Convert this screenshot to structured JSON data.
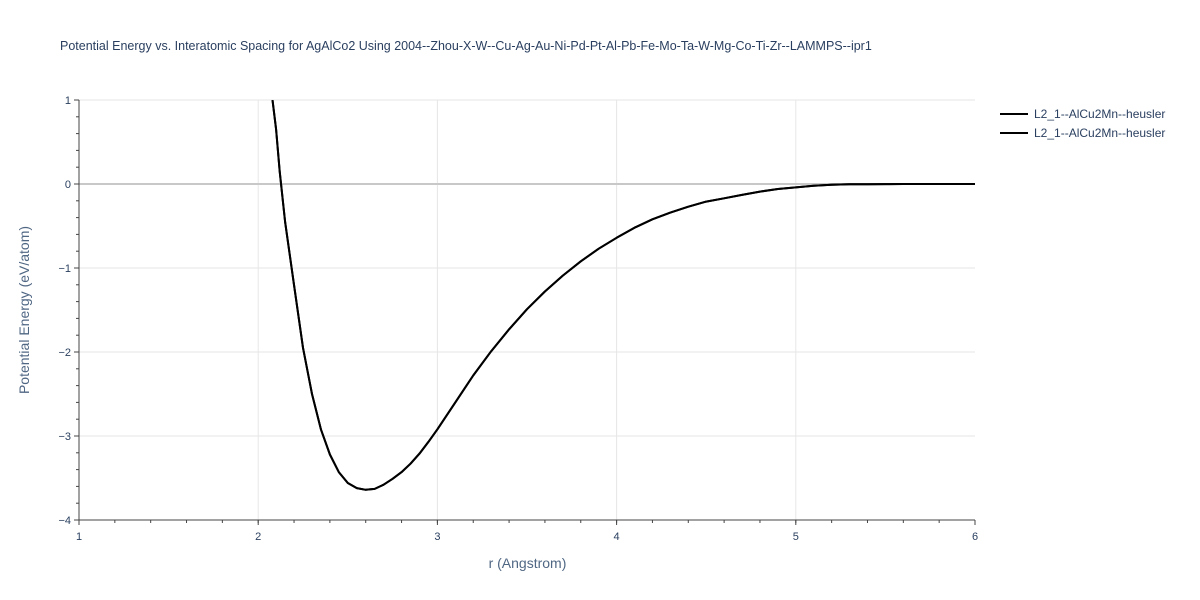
{
  "chart_data": {
    "type": "line",
    "title": "Potential Energy vs. Interatomic Spacing for AgAlCo2 Using 2004--Zhou-X-W--Cu-Ag-Au-Ni-Pd-Pt-Al-Pb-Fe-Mo-Ta-W-Mg-Co-Ti-Zr--LAMMPS--ipr1",
    "xlabel": "r (Angstrom)",
    "ylabel": "Potential Energy (eV/atom)",
    "xlim": [
      1,
      6
    ],
    "ylim": [
      -4,
      1
    ],
    "x_ticks": [
      "1",
      "2",
      "3",
      "4",
      "5",
      "6"
    ],
    "y_ticks": [
      "1",
      "0",
      "−1",
      "−2",
      "−3",
      "−4"
    ],
    "grid": true,
    "legend_position": "top-right",
    "series": [
      {
        "name": "L2_1--AlCu2Mn--heusler",
        "color": "#000000",
        "x": [
          2.08,
          2.1,
          2.12,
          2.15,
          2.2,
          2.25,
          2.3,
          2.35,
          2.4,
          2.45,
          2.5,
          2.55,
          2.6,
          2.65,
          2.7,
          2.75,
          2.8,
          2.85,
          2.9,
          2.95,
          3.0,
          3.1,
          3.2,
          3.3,
          3.4,
          3.5,
          3.6,
          3.7,
          3.8,
          3.9,
          4.0,
          4.1,
          4.2,
          4.3,
          4.4,
          4.5,
          4.6,
          4.7,
          4.8,
          4.9,
          5.0,
          5.1,
          5.2,
          5.3,
          5.4,
          5.5,
          5.6,
          5.8,
          6.0
        ],
        "y": [
          1.0,
          0.65,
          0.15,
          -0.45,
          -1.2,
          -1.95,
          -2.5,
          -2.92,
          -3.22,
          -3.43,
          -3.56,
          -3.62,
          -3.64,
          -3.63,
          -3.58,
          -3.51,
          -3.43,
          -3.33,
          -3.21,
          -3.07,
          -2.92,
          -2.6,
          -2.28,
          -1.99,
          -1.73,
          -1.49,
          -1.28,
          -1.09,
          -0.92,
          -0.77,
          -0.64,
          -0.52,
          -0.42,
          -0.34,
          -0.27,
          -0.21,
          -0.17,
          -0.13,
          -0.09,
          -0.06,
          -0.04,
          -0.02,
          -0.01,
          -0.004,
          -0.002,
          -0.001,
          0.0,
          0.0,
          0.0
        ]
      },
      {
        "name": "L2_1--AlCu2Mn--heusler",
        "color": "#000000",
        "x": [
          2.08,
          2.1,
          2.12,
          2.15,
          2.2,
          2.25,
          2.3,
          2.35,
          2.4,
          2.45,
          2.5,
          2.55,
          2.6,
          2.65,
          2.7,
          2.75,
          2.8,
          2.85,
          2.9,
          2.95,
          3.0,
          3.1,
          3.2,
          3.3,
          3.4,
          3.5,
          3.6,
          3.7,
          3.8,
          3.9,
          4.0,
          4.1,
          4.2,
          4.3,
          4.4,
          4.5,
          4.6,
          4.7,
          4.8,
          4.9,
          5.0,
          5.1,
          5.2,
          5.3,
          5.4,
          5.5,
          5.6,
          5.8,
          6.0
        ],
        "y": [
          1.0,
          0.65,
          0.15,
          -0.45,
          -1.2,
          -1.95,
          -2.5,
          -2.92,
          -3.22,
          -3.43,
          -3.56,
          -3.62,
          -3.64,
          -3.63,
          -3.58,
          -3.51,
          -3.43,
          -3.33,
          -3.21,
          -3.07,
          -2.92,
          -2.6,
          -2.28,
          -1.99,
          -1.73,
          -1.49,
          -1.28,
          -1.09,
          -0.92,
          -0.77,
          -0.64,
          -0.52,
          -0.42,
          -0.34,
          -0.27,
          -0.21,
          -0.17,
          -0.13,
          -0.09,
          -0.06,
          -0.04,
          -0.02,
          -0.01,
          -0.004,
          -0.002,
          -0.001,
          0.0,
          0.0,
          0.0
        ]
      }
    ],
    "colors": {
      "grid": "#e6e6e6",
      "zero_line": "#c8c8c8",
      "axis": "#444444",
      "text": "#2a3f5f"
    }
  }
}
